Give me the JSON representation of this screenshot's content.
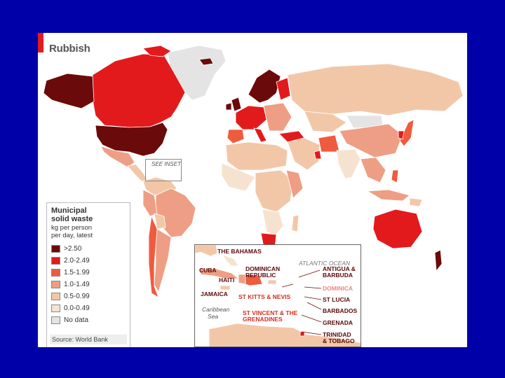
{
  "title": "Rubbish",
  "colors": {
    "bg": "#0000a8",
    "c1": "#6b0a0a",
    "c2": "#e31a1c",
    "c3": "#ef5b3f",
    "c4": "#ee9e84",
    "c5": "#f2c7a8",
    "c6": "#f6e3cf",
    "nodata": "#e4e4e4",
    "ocean": "#ffffff"
  },
  "legend": {
    "title_line1": "Municipal",
    "title_line2": "solid waste",
    "sub_line1": "kg per person",
    "sub_line2": "per day, latest",
    "items": [
      {
        "label": ">2.50",
        "color": "#6b0a0a"
      },
      {
        "label": "2.0-2.49",
        "color": "#e31a1c"
      },
      {
        "label": "1.5-1.99",
        "color": "#ef5b3f"
      },
      {
        "label": "1.0-1.49",
        "color": "#ee9e84"
      },
      {
        "label": "0.5-0.99",
        "color": "#f2c7a8"
      },
      {
        "label": "0.0-0.49",
        "color": "#f6e3cf"
      },
      {
        "label": "No data",
        "color": "#e4e4e4"
      }
    ],
    "source": "Source: World Bank"
  },
  "see_inset": "SEE INSET",
  "inset": {
    "the_bahamas": "THE BAHAMAS",
    "atlantic_ocean": "ATLANTIC OCEAN",
    "cuba": "CUBA",
    "haiti": "HAITI",
    "dominican_republic_1": "DOMINICAN",
    "dominican_republic_2": "REPUBLIC",
    "jamaica": "JAMAICA",
    "caribbean_1": "Caribbean",
    "caribbean_2": "Sea",
    "antigua_1": "ANTIGUA &",
    "antigua_2": "BARBUDA",
    "dominica": "DOMINICA",
    "st_lucia": "ST LUCIA",
    "barbados": "BARBADOS",
    "grenada": "GRENADA",
    "trinidad_1": "TRINIDAD",
    "trinidad_2": "& TOBAGO",
    "st_kitts": "ST KITTS & NEVIS",
    "st_vincent_1": "ST VINCENT & THE",
    "st_vincent_2": "GRENADINES"
  }
}
